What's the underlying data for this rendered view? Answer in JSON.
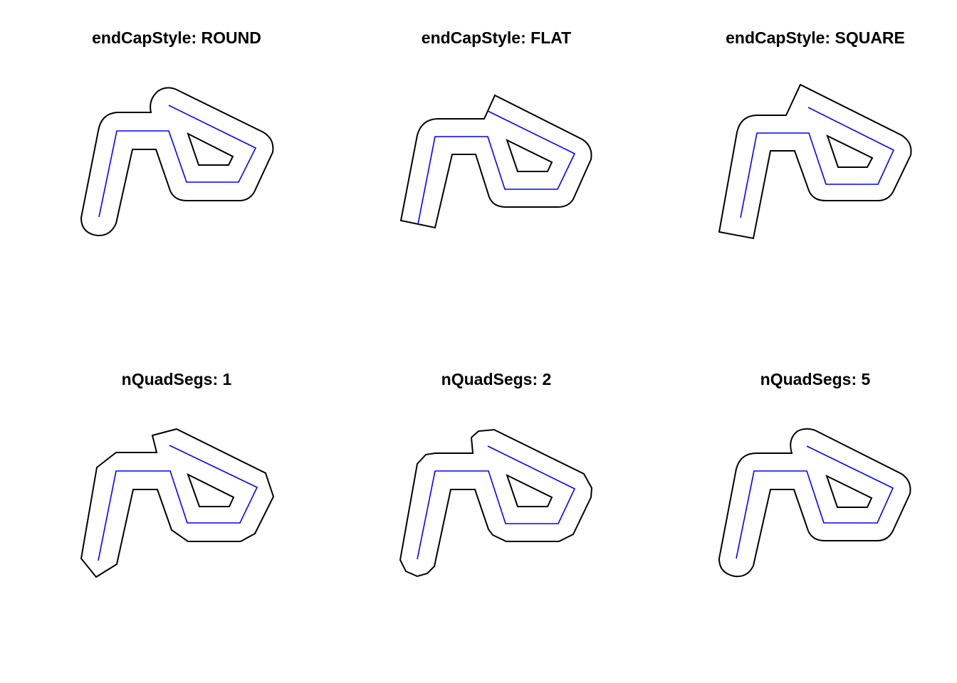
{
  "panels": [
    {
      "title": "endCapStyle: ROUND"
    },
    {
      "title": "endCapStyle: FLAT"
    },
    {
      "title": "endCapStyle: SQUARE"
    },
    {
      "title": "nQuadSegs: 1"
    },
    {
      "title": "nQuadSegs: 2"
    },
    {
      "title": "nQuadSegs: 5"
    }
  ],
  "colors": {
    "background": "#ffffff",
    "buffer_outline": "#000000",
    "line": "#0000ff"
  }
}
